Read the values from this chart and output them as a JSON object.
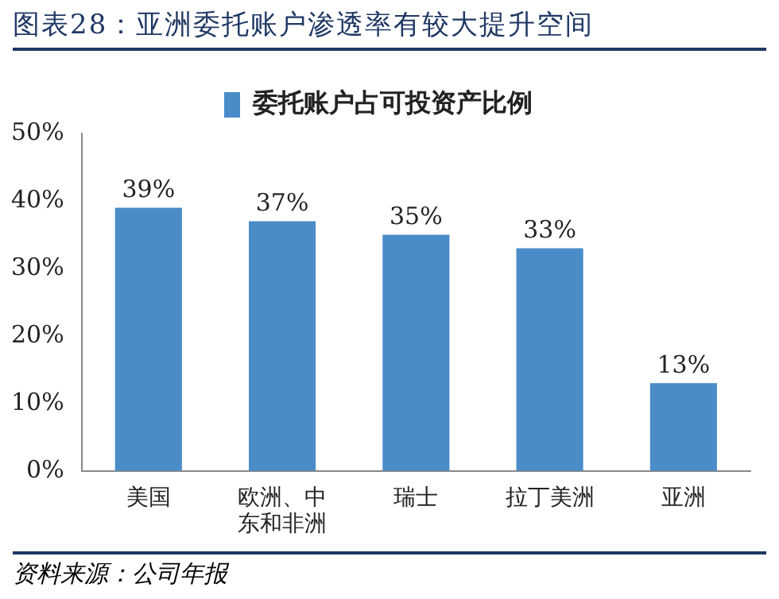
{
  "chart_data": {
    "type": "bar",
    "title": "图表28：亚洲委托账户渗透率有较大提升空间",
    "categories": [
      "美国",
      "欧洲、中东和非洲",
      "瑞士",
      "拉丁美洲",
      "亚洲"
    ],
    "series": [
      {
        "name": "委托账户占可投资产比例",
        "color": "#4a8cc8",
        "values": [
          39,
          37,
          35,
          33,
          13
        ]
      }
    ],
    "value_labels": [
      "39%",
      "37%",
      "35%",
      "33%",
      "13%"
    ],
    "ylim": [
      0,
      50
    ],
    "yticks": [
      {
        "value": 0,
        "label": "0%"
      },
      {
        "value": 10,
        "label": "10%"
      },
      {
        "value": 20,
        "label": "20%"
      },
      {
        "value": 30,
        "label": "30%"
      },
      {
        "value": 40,
        "label": "40%"
      },
      {
        "value": 50,
        "label": "50%"
      }
    ],
    "grid": false,
    "legend": "top",
    "annotations": [
      "资料来源：公司年报"
    ]
  }
}
